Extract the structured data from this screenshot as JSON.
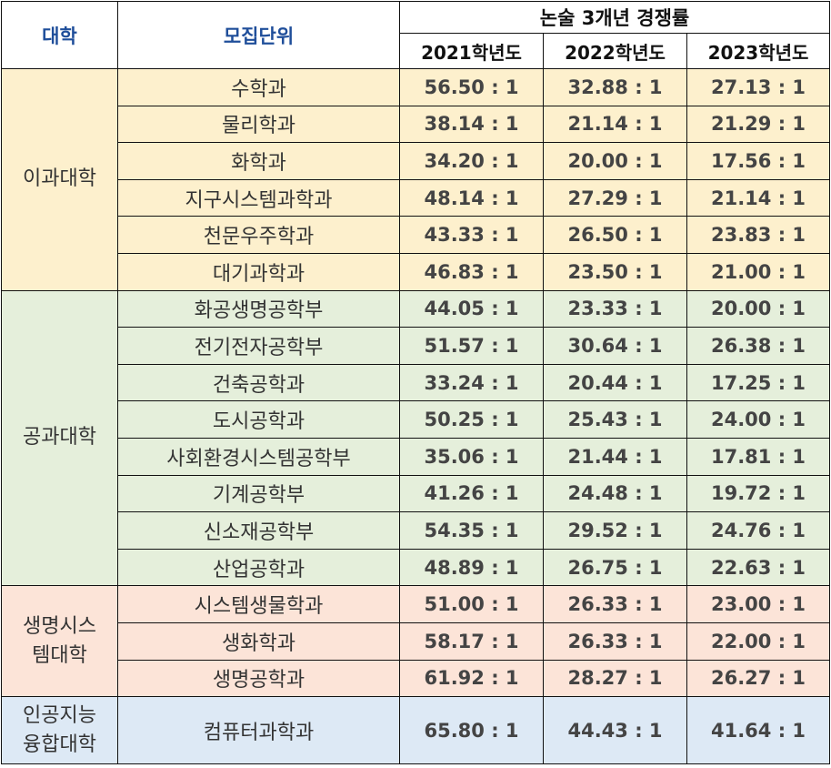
{
  "header": {
    "college": "대학",
    "unit": "모집단위",
    "title": "논술 3개년 경쟁률",
    "years": [
      "2021학년도",
      "2022학년도",
      "2023학년도"
    ]
  },
  "groups": [
    {
      "college": "이과대학",
      "rows": [
        {
          "unit": "수학과",
          "r2021": "56.50 : 1",
          "r2022": "32.88 : 1",
          "r2023": "27.13 : 1"
        },
        {
          "unit": "물리학과",
          "r2021": "38.14 : 1",
          "r2022": "21.14 : 1",
          "r2023": "21.29 : 1"
        },
        {
          "unit": "화학과",
          "r2021": "34.20 : 1",
          "r2022": "20.00 : 1",
          "r2023": "17.56 : 1"
        },
        {
          "unit": "지구시스템과학과",
          "r2021": "48.14 : 1",
          "r2022": "27.29 : 1",
          "r2023": "21.14 : 1"
        },
        {
          "unit": "천문우주학과",
          "r2021": "43.33 : 1",
          "r2022": "26.50 : 1",
          "r2023": "23.83 : 1"
        },
        {
          "unit": "대기과학과",
          "r2021": "46.83 : 1",
          "r2022": "23.50 : 1",
          "r2023": "21.00 : 1"
        }
      ]
    },
    {
      "college": "공과대학",
      "rows": [
        {
          "unit": "화공생명공학부",
          "r2021": "44.05 : 1",
          "r2022": "23.33 : 1",
          "r2023": "20.00 : 1"
        },
        {
          "unit": "전기전자공학부",
          "r2021": "51.57 : 1",
          "r2022": "30.64 : 1",
          "r2023": "26.38 : 1"
        },
        {
          "unit": "건축공학과",
          "r2021": "33.24 : 1",
          "r2022": "20.44 : 1",
          "r2023": "17.25 : 1"
        },
        {
          "unit": "도시공학과",
          "r2021": "50.25 : 1",
          "r2022": "25.43 : 1",
          "r2023": "24.00 : 1"
        },
        {
          "unit": "사회환경시스템공학부",
          "r2021": "35.06 : 1",
          "r2022": "21.44 : 1",
          "r2023": "17.81 : 1"
        },
        {
          "unit": "기계공학부",
          "r2021": "41.26 : 1",
          "r2022": "24.48 : 1",
          "r2023": "19.72 : 1"
        },
        {
          "unit": "신소재공학부",
          "r2021": "54.35 : 1",
          "r2022": "29.52 : 1",
          "r2023": "24.76 : 1"
        },
        {
          "unit": "산업공학과",
          "r2021": "48.89 : 1",
          "r2022": "26.75 : 1",
          "r2023": "22.63 : 1"
        }
      ]
    },
    {
      "college": "생명시스\n템대학",
      "rows": [
        {
          "unit": "시스템생물학과",
          "r2021": "51.00 : 1",
          "r2022": "26.33 : 1",
          "r2023": "23.00 : 1"
        },
        {
          "unit": "생화학과",
          "r2021": "58.17 : 1",
          "r2022": "26.33 : 1",
          "r2023": "22.00 : 1"
        },
        {
          "unit": "생명공학과",
          "r2021": "61.92 : 1",
          "r2022": "28.27 : 1",
          "r2023": "26.27 : 1"
        }
      ]
    },
    {
      "college": "인공지능\n융합대학",
      "rows": [
        {
          "unit": "컴퓨터과학과",
          "r2021": "65.80 : 1",
          "r2022": "44.43 : 1",
          "r2023": "41.64 : 1"
        }
      ]
    }
  ]
}
